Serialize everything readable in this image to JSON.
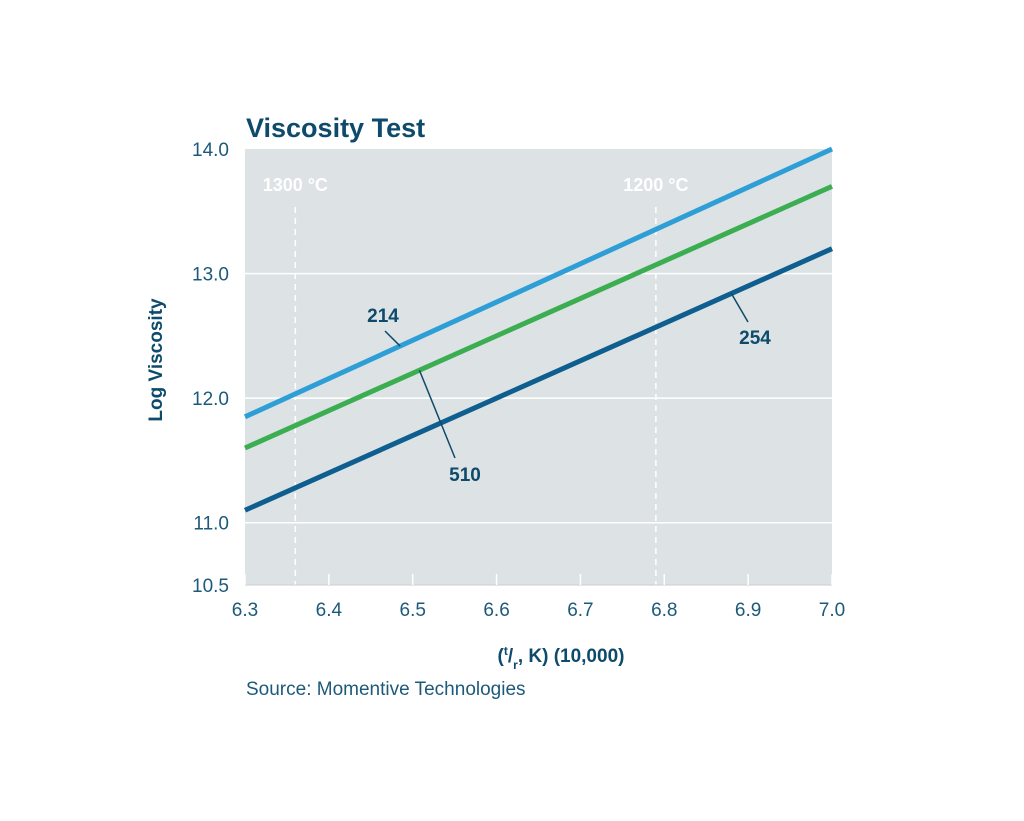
{
  "chart_data": {
    "type": "line",
    "title": "Viscosity Test",
    "xlabel": "(t/r, K) (10,000)",
    "ylabel": "Log Viscosity",
    "xlim": [
      6.3,
      7.0
    ],
    "ylim": [
      10.5,
      14.0
    ],
    "x_ticks": [
      "6.3",
      "6.4",
      "6.5",
      "6.6",
      "6.7",
      "6.8",
      "6.9",
      "7.0"
    ],
    "y_ticks": [
      "10.5",
      "11.0",
      "12.0",
      "13.0",
      "14.0"
    ],
    "grid": "horizontal",
    "reference_lines": [
      {
        "label": "1300 °C",
        "x": 6.36
      },
      {
        "label": "1200 °C",
        "x": 6.79
      }
    ],
    "series": [
      {
        "name": "214",
        "color": "#2e9fd6",
        "x": [
          6.3,
          7.0
        ],
        "y": [
          11.85,
          14.0
        ]
      },
      {
        "name": "510",
        "color": "#3cae52",
        "x": [
          6.3,
          7.0
        ],
        "y": [
          11.6,
          13.7
        ]
      },
      {
        "name": "254",
        "color": "#0e5e8f",
        "x": [
          6.3,
          7.0
        ],
        "y": [
          11.1,
          13.2
        ]
      }
    ],
    "source": "Source: Momentive Technologies"
  }
}
